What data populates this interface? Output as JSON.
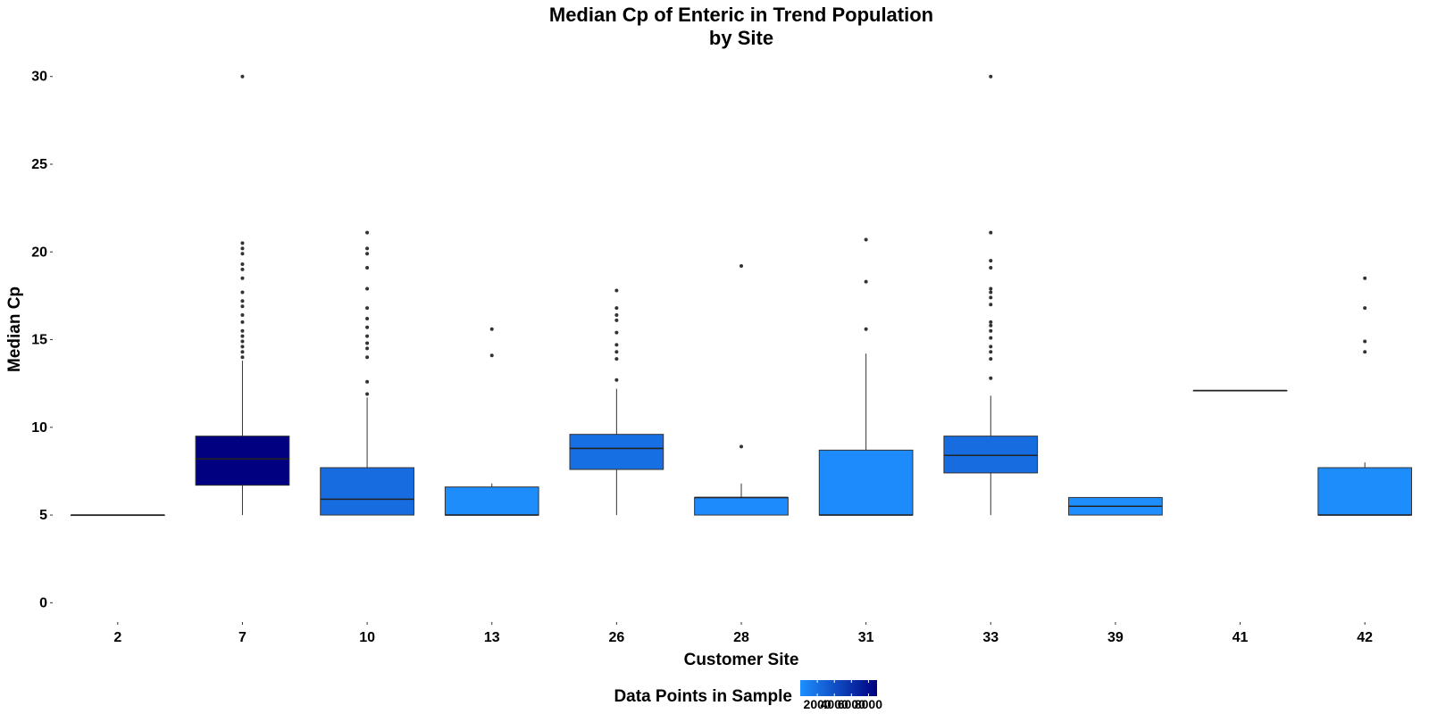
{
  "chart_data": {
    "type": "boxplot",
    "title": [
      "Median Cp of Enteric in Trend Population",
      "by Site"
    ],
    "xlabel": "Customer Site",
    "ylabel": "Median Cp",
    "ylim": [
      -1,
      30.8
    ],
    "yticks": [
      0,
      5,
      10,
      15,
      20,
      25,
      30
    ],
    "grid": false,
    "legend": {
      "title": "Data Points in Sample",
      "placement": "bottom",
      "ticks": [
        "2000",
        "4000",
        "6000",
        "8000"
      ],
      "range": [
        0,
        9000
      ],
      "low_color": "#1E90FF",
      "high_color": "#000080"
    },
    "categories": [
      "2",
      "7",
      "10",
      "13",
      "26",
      "28",
      "31",
      "33",
      "39",
      "41",
      "42"
    ],
    "boxes": [
      {
        "site": "2",
        "q1": 5.0,
        "median": 5.0,
        "q3": 5.0,
        "whisker_low": 5.0,
        "whisker_high": 5.0,
        "count": 100,
        "outliers": []
      },
      {
        "site": "7",
        "q1": 6.7,
        "median": 8.2,
        "q3": 9.5,
        "whisker_low": 5.0,
        "whisker_high": 13.8,
        "count": 9000,
        "outliers": [
          14.0,
          14.3,
          14.6,
          14.9,
          15.2,
          15.5,
          16.0,
          16.4,
          16.9,
          17.2,
          17.7,
          18.5,
          19.0,
          19.3,
          19.9,
          20.2,
          20.5,
          30.0
        ]
      },
      {
        "site": "10",
        "q1": 5.0,
        "median": 5.9,
        "q3": 7.7,
        "whisker_low": 5.0,
        "whisker_high": 11.7,
        "count": 2200,
        "outliers": [
          11.9,
          12.6,
          14.0,
          14.5,
          14.8,
          15.2,
          15.7,
          16.2,
          16.8,
          17.9,
          19.1,
          19.9,
          20.2,
          21.1
        ]
      },
      {
        "site": "13",
        "q1": 5.0,
        "median": 5.0,
        "q3": 6.6,
        "whisker_low": 5.0,
        "whisker_high": 6.8,
        "count": 200,
        "outliers": [
          14.1,
          15.6
        ]
      },
      {
        "site": "26",
        "q1": 7.6,
        "median": 8.8,
        "q3": 9.6,
        "whisker_low": 5.0,
        "whisker_high": 12.2,
        "count": 2000,
        "outliers": [
          12.7,
          13.9,
          14.3,
          14.7,
          15.4,
          16.1,
          16.4,
          16.8,
          17.8
        ]
      },
      {
        "site": "28",
        "q1": 5.0,
        "median": 6.0,
        "q3": 6.0,
        "whisker_low": 5.0,
        "whisker_high": 6.8,
        "count": 300,
        "outliers": [
          8.9,
          19.2
        ]
      },
      {
        "site": "31",
        "q1": 5.0,
        "median": 5.0,
        "q3": 8.7,
        "whisker_low": 5.0,
        "whisker_high": 14.2,
        "count": 300,
        "outliers": [
          15.6,
          18.3,
          20.7
        ]
      },
      {
        "site": "33",
        "q1": 7.4,
        "median": 8.4,
        "q3": 9.5,
        "whisker_low": 5.0,
        "whisker_high": 11.8,
        "count": 2200,
        "outliers": [
          12.8,
          13.9,
          14.3,
          14.6,
          15.1,
          15.5,
          15.8,
          16.0,
          17.0,
          17.4,
          17.7,
          17.9,
          19.1,
          19.5,
          21.1,
          30.0
        ]
      },
      {
        "site": "39",
        "q1": 5.0,
        "median": 5.5,
        "q3": 6.0,
        "whisker_low": 5.0,
        "whisker_high": 6.0,
        "count": 100,
        "outliers": []
      },
      {
        "site": "41",
        "q1": 12.1,
        "median": 12.1,
        "q3": 12.1,
        "whisker_low": 12.1,
        "whisker_high": 12.1,
        "count": 100,
        "outliers": []
      },
      {
        "site": "42",
        "q1": 5.0,
        "median": 5.0,
        "q3": 7.7,
        "whisker_low": 5.0,
        "whisker_high": 8.0,
        "count": 200,
        "outliers": [
          14.3,
          14.9,
          16.8,
          18.5
        ]
      }
    ]
  }
}
